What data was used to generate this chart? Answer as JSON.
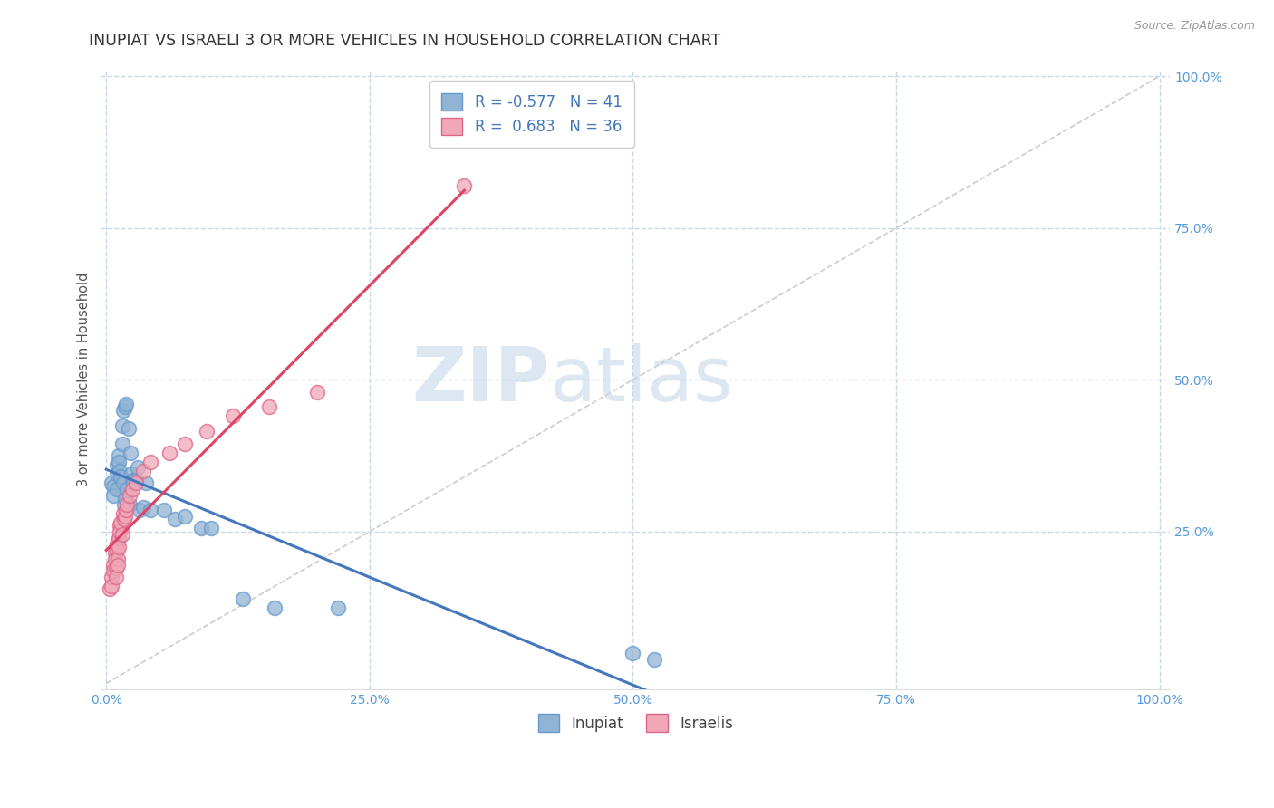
{
  "title": "INUPIAT VS ISRAELI 3 OR MORE VEHICLES IN HOUSEHOLD CORRELATION CHART",
  "source_text": "Source: ZipAtlas.com",
  "ylabel": "3 or more Vehicles in Household",
  "xlim": [
    -0.005,
    1.01
  ],
  "ylim": [
    -0.01,
    1.01
  ],
  "xticks": [
    0.0,
    0.25,
    0.5,
    0.75,
    1.0
  ],
  "xticklabels": [
    "0.0%",
    "25.0%",
    "50.0%",
    "75.0%",
    "100.0%"
  ],
  "yticks": [
    0.25,
    0.5,
    0.75,
    1.0
  ],
  "yticklabels": [
    "25.0%",
    "50.0%",
    "75.0%",
    "100.0%"
  ],
  "inupiat_color": "#92b4d4",
  "inupiat_edge": "#6699cc",
  "israelis_color": "#f0a8b8",
  "israelis_edge": "#dd6688",
  "inupiat_line_color": "#4477bb",
  "israelis_line_color": "#dd4466",
  "inupiat_R": -0.577,
  "inupiat_N": 41,
  "israelis_R": 0.683,
  "israelis_N": 36,
  "legend_label_inupiat": "Inupiat",
  "legend_label_israelis": "Israelis",
  "watermark_zip": "ZIP",
  "watermark_atlas": "atlas",
  "inupiat_x": [
    0.005,
    0.007,
    0.007,
    0.01,
    0.01,
    0.01,
    0.012,
    0.012,
    0.013,
    0.014,
    0.015,
    0.015,
    0.016,
    0.016,
    0.017,
    0.018,
    0.018,
    0.019,
    0.02,
    0.021,
    0.022,
    0.023,
    0.024,
    0.025,
    0.026,
    0.028,
    0.03,
    0.032,
    0.035,
    0.038,
    0.042,
    0.055,
    0.065,
    0.075,
    0.09,
    0.1,
    0.13,
    0.16,
    0.22,
    0.5,
    0.52
  ],
  "inupiat_y": [
    0.33,
    0.325,
    0.31,
    0.36,
    0.345,
    0.32,
    0.375,
    0.365,
    0.35,
    0.34,
    0.425,
    0.395,
    0.33,
    0.45,
    0.295,
    0.455,
    0.305,
    0.46,
    0.32,
    0.42,
    0.295,
    0.38,
    0.345,
    0.335,
    0.33,
    0.335,
    0.355,
    0.285,
    0.29,
    0.33,
    0.285,
    0.285,
    0.27,
    0.275,
    0.255,
    0.255,
    0.14,
    0.125,
    0.125,
    0.05,
    0.04
  ],
  "israelis_x": [
    0.003,
    0.005,
    0.005,
    0.007,
    0.007,
    0.008,
    0.008,
    0.009,
    0.009,
    0.01,
    0.01,
    0.011,
    0.011,
    0.012,
    0.012,
    0.013,
    0.013,
    0.014,
    0.015,
    0.016,
    0.017,
    0.018,
    0.019,
    0.02,
    0.022,
    0.025,
    0.028,
    0.035,
    0.042,
    0.06,
    0.075,
    0.095,
    0.12,
    0.155,
    0.2,
    0.34
  ],
  "israelis_y": [
    0.155,
    0.175,
    0.16,
    0.195,
    0.185,
    0.215,
    0.205,
    0.19,
    0.175,
    0.23,
    0.22,
    0.205,
    0.195,
    0.24,
    0.225,
    0.26,
    0.25,
    0.265,
    0.245,
    0.28,
    0.27,
    0.275,
    0.285,
    0.295,
    0.31,
    0.32,
    0.33,
    0.35,
    0.365,
    0.38,
    0.395,
    0.415,
    0.44,
    0.455,
    0.48,
    0.82
  ],
  "background_color": "#ffffff",
  "grid_color": "#c8d8e8",
  "title_fontsize": 12.5,
  "axis_label_fontsize": 10.5,
  "tick_fontsize": 10,
  "tick_color": "#5599dd",
  "axis_color": "#dddddd"
}
